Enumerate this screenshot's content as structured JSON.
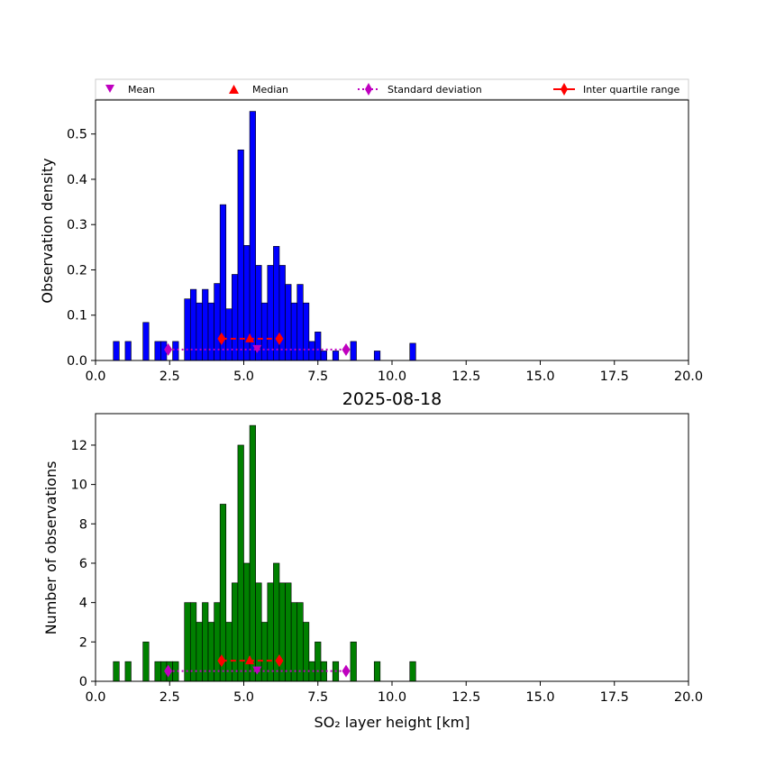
{
  "chart_data": [
    {
      "type": "bar",
      "panel": "top",
      "title": "",
      "xlabel": "",
      "ylabel": "Observation density",
      "xlim": [
        0,
        20
      ],
      "ylim": [
        0,
        0.575
      ],
      "xticks": [
        0,
        2.5,
        5,
        7.5,
        10,
        12.5,
        15,
        17.5,
        20
      ],
      "xtick_labels": [
        "0.0",
        "2.5",
        "5.0",
        "7.5",
        "10.0",
        "12.5",
        "15.0",
        "17.5",
        "20.0"
      ],
      "yticks": [
        0,
        0.1,
        0.2,
        0.3,
        0.4,
        0.5
      ],
      "ytick_labels": [
        "0.0",
        "0.1",
        "0.2",
        "0.3",
        "0.4",
        "0.5"
      ],
      "bar_color": "#0000ff",
      "bin_width": 0.2,
      "bins": [
        [
          0.6,
          0.042
        ],
        [
          1.0,
          0.042
        ],
        [
          1.6,
          0.084
        ],
        [
          2.0,
          0.042
        ],
        [
          2.2,
          0.042
        ],
        [
          2.6,
          0.042
        ],
        [
          3.0,
          0.136
        ],
        [
          3.2,
          0.157
        ],
        [
          3.4,
          0.127
        ],
        [
          3.6,
          0.157
        ],
        [
          3.8,
          0.127
        ],
        [
          4.0,
          0.17
        ],
        [
          4.2,
          0.344
        ],
        [
          4.4,
          0.114
        ],
        [
          4.6,
          0.19
        ],
        [
          4.8,
          0.465
        ],
        [
          5.0,
          0.254
        ],
        [
          5.2,
          0.55
        ],
        [
          5.4,
          0.21
        ],
        [
          5.6,
          0.127
        ],
        [
          5.8,
          0.21
        ],
        [
          6.0,
          0.252
        ],
        [
          6.2,
          0.21
        ],
        [
          6.4,
          0.168
        ],
        [
          6.6,
          0.127
        ],
        [
          6.8,
          0.168
        ],
        [
          7.0,
          0.127
        ],
        [
          7.2,
          0.042
        ],
        [
          7.4,
          0.063
        ],
        [
          7.6,
          0.021
        ],
        [
          8.0,
          0.021
        ],
        [
          8.6,
          0.042
        ],
        [
          9.4,
          0.021
        ],
        [
          10.6,
          0.038
        ]
      ],
      "markers_y": 0.048,
      "std_y": 0.024
    },
    {
      "type": "bar",
      "panel": "bottom",
      "title": "2025-08-18",
      "xlabel": "SO₂ layer height [km]",
      "ylabel": "Number of observations",
      "xlim": [
        0,
        20
      ],
      "ylim": [
        0,
        13.6
      ],
      "xticks": [
        0,
        2.5,
        5,
        7.5,
        10,
        12.5,
        15,
        17.5,
        20
      ],
      "xtick_labels": [
        "0.0",
        "2.5",
        "5.0",
        "7.5",
        "10.0",
        "12.5",
        "15.0",
        "17.5",
        "20.0"
      ],
      "yticks": [
        0,
        2,
        4,
        6,
        8,
        10,
        12
      ],
      "ytick_labels": [
        "0",
        "2",
        "4",
        "6",
        "8",
        "10",
        "12"
      ],
      "bar_color": "#008000",
      "bin_width": 0.2,
      "bins": [
        [
          0.6,
          1
        ],
        [
          1.0,
          1
        ],
        [
          1.6,
          2
        ],
        [
          2.0,
          1
        ],
        [
          2.2,
          1
        ],
        [
          2.4,
          1
        ],
        [
          2.6,
          1
        ],
        [
          3.0,
          4
        ],
        [
          3.2,
          4
        ],
        [
          3.4,
          3
        ],
        [
          3.6,
          4
        ],
        [
          3.8,
          3
        ],
        [
          4.0,
          4
        ],
        [
          4.2,
          9
        ],
        [
          4.4,
          3
        ],
        [
          4.6,
          5
        ],
        [
          4.8,
          12
        ],
        [
          5.0,
          6
        ],
        [
          5.2,
          13
        ],
        [
          5.4,
          5
        ],
        [
          5.6,
          3
        ],
        [
          5.8,
          5
        ],
        [
          6.0,
          6
        ],
        [
          6.2,
          5
        ],
        [
          6.4,
          5
        ],
        [
          6.6,
          4
        ],
        [
          6.8,
          4
        ],
        [
          7.0,
          3
        ],
        [
          7.2,
          1
        ],
        [
          7.4,
          2
        ],
        [
          7.6,
          1
        ],
        [
          8.0,
          1
        ],
        [
          8.6,
          2
        ],
        [
          9.4,
          1
        ],
        [
          10.6,
          1
        ]
      ],
      "markers_y": 1.05,
      "std_y": 0.52
    }
  ],
  "statistics": {
    "mean": 5.45,
    "median": 5.2,
    "std_low": 2.45,
    "std_high": 8.45,
    "iqr_low": 4.25,
    "iqr_high": 6.2
  },
  "legend": {
    "mean": "Mean",
    "median": "Median",
    "std": "Standard deviation",
    "iqr": "Inter quartile range"
  },
  "colors": {
    "mean": "#bf00bf",
    "median": "#ff0000",
    "std": "#bf00bf",
    "iqr": "#ff0000"
  }
}
